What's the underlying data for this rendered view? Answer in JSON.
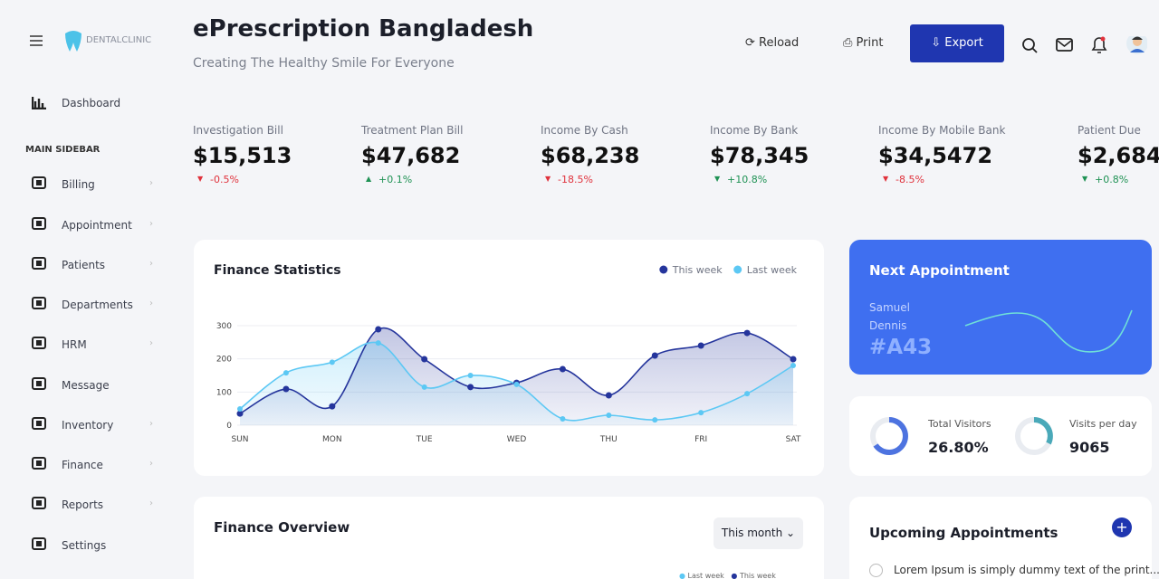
{
  "sidebar": {
    "brand": "DENTALCLINIC",
    "dashboard": "Dashboard",
    "section": "MAIN SIDEBAR",
    "items": [
      "Billing",
      "Appointment",
      "Patients",
      "Departments",
      "HRM",
      "Message",
      "Inventory",
      "Finance",
      "Reports",
      "Settings"
    ]
  },
  "header": {
    "title": "ePrescription Bangladesh",
    "subtitle": "Creating The Healthy Smile For Everyone",
    "reload": "Reload",
    "print": "Print",
    "export": "Export"
  },
  "stats": [
    {
      "label": "Investigation Bill",
      "value": "$15,513",
      "change": "-0.5%",
      "arrow": "down",
      "color": "#e0323c"
    },
    {
      "label": "Treatment Plan Bill",
      "value": "$47,682",
      "change": "+0.1%",
      "arrow": "up",
      "color": "#1f9254"
    },
    {
      "label": "Income By Cash",
      "value": "$68,238",
      "change": "-18.5%",
      "arrow": "down",
      "color": "#e0323c"
    },
    {
      "label": "Income By Bank",
      "value": "$78,345",
      "change": "+10.8%",
      "arrow": "down",
      "color": "#1f9254"
    },
    {
      "label": "Income By Mobile Bank",
      "value": "$34,5472",
      "change": "-8.5%",
      "arrow": "down",
      "color": "#e0323c"
    },
    {
      "label": "Patient Due",
      "value": "$2,684",
      "change": "+0.8%",
      "arrow": "down",
      "color": "#1f9254"
    }
  ],
  "chart_data": {
    "type": "line",
    "title": "Finance Statistics",
    "categories": [
      "SUN",
      null,
      "MON",
      null,
      "TUE",
      null,
      "WED",
      null,
      "THU",
      null,
      "FRI",
      null,
      "SAT"
    ],
    "series": [
      {
        "name": "This week",
        "color": "#25359c",
        "values": [
          35,
          109,
          57,
          289,
          199,
          115,
          128,
          169,
          90,
          210,
          240,
          278,
          199
        ]
      },
      {
        "name": "Last week",
        "color": "#5cc8f4",
        "values": [
          49,
          158,
          190,
          248,
          115,
          150,
          123,
          19,
          30,
          16,
          38,
          95,
          180
        ]
      }
    ],
    "ylim": [
      0,
      300
    ],
    "yticks": [
      0,
      100,
      200,
      300
    ],
    "grid": true,
    "smooth": true,
    "legend": "top-right"
  },
  "next_appointment": {
    "title": "Next Appointment",
    "first_name": "Samuel",
    "last_name": "Dennis",
    "code": "#A43"
  },
  "visitors": [
    {
      "label": "Total Visitors",
      "value": "26.80%"
    },
    {
      "label": "Visits per day",
      "value": "9065"
    }
  ],
  "finance_overview": {
    "title": "Finance Overview",
    "filter": "This month",
    "legend": [
      "Last week",
      "This week"
    ]
  },
  "upcoming": {
    "title": "Upcoming Appointments",
    "items": [
      "Lorem Ipsum is simply dummy text of the print..."
    ]
  }
}
